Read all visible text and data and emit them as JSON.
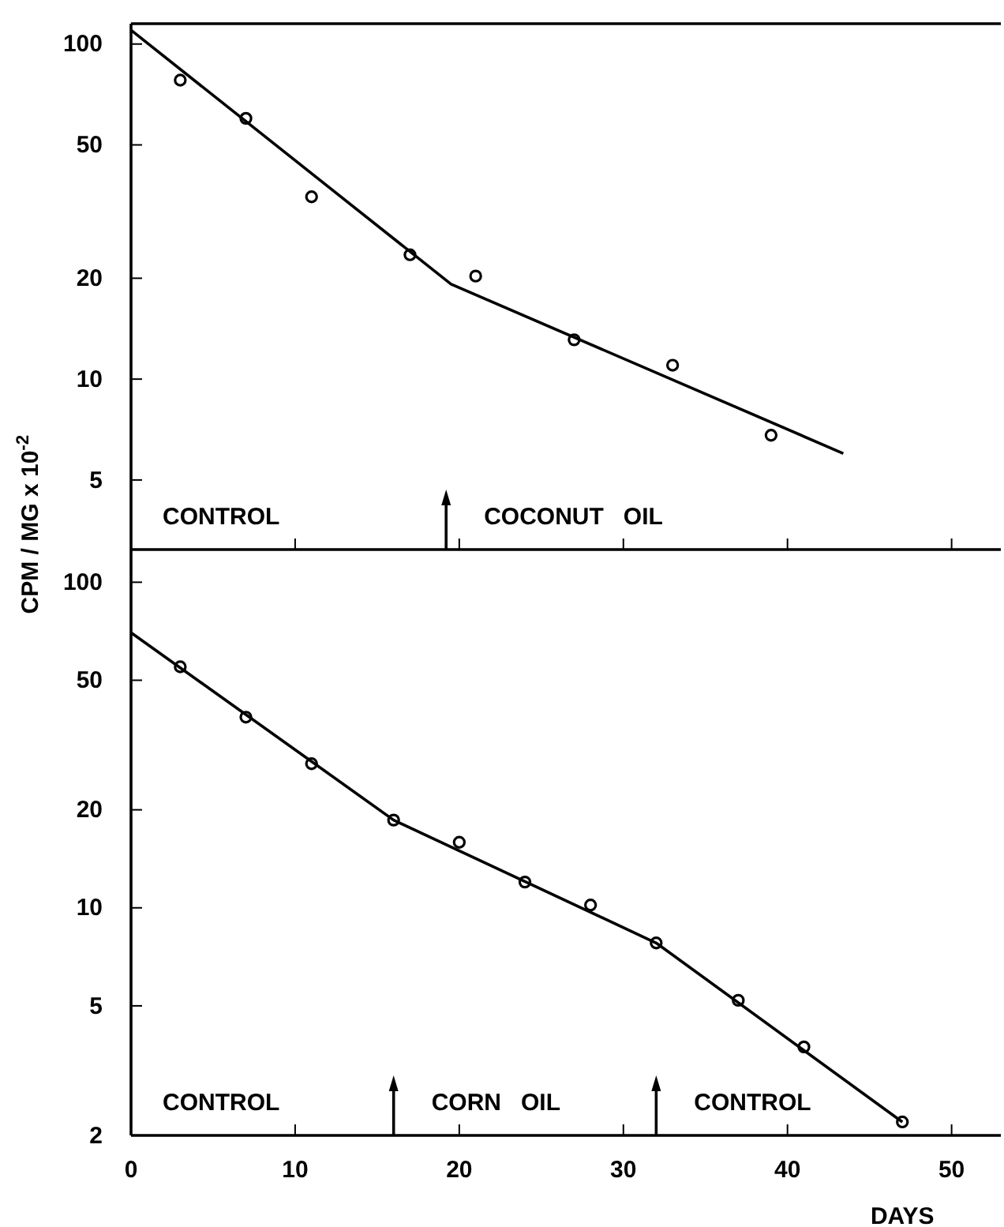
{
  "chart_data": [
    {
      "type": "scatter",
      "log": "y",
      "xlim": [
        0,
        53
      ],
      "xticks": [
        {
          "value": 0,
          "label": null
        },
        {
          "value": 10,
          "label": null
        },
        {
          "value": 20,
          "label": null
        },
        {
          "value": 30,
          "label": null
        },
        {
          "value": 40,
          "label": null
        },
        {
          "value": 50,
          "label": null
        }
      ],
      "ylim": [
        3.1,
        115
      ],
      "yticks": [
        100,
        50,
        20,
        10,
        5
      ],
      "tick_labels": "y",
      "grid": false,
      "series": [
        {
          "color": "#000000",
          "marker": "circle",
          "x": [
            3,
            7,
            11,
            17,
            21,
            27,
            33,
            39
          ],
          "values": [
            78,
            60,
            35,
            23.5,
            20.3,
            13.1,
            11,
            6.8
          ]
        },
        {
          "type": "line",
          "color": "#000000",
          "line_style": "solid",
          "x": [
            0,
            19.5,
            43.4
          ],
          "values": [
            110,
            19.2,
            6
          ]
        }
      ],
      "ref_lines": [
        {
          "axis": "x",
          "value": 19.2
        }
      ],
      "annotations": [
        "CONTROL",
        "COCONUT   OIL"
      ]
    },
    {
      "type": "scatter",
      "log": "y",
      "xlim": [
        0,
        53
      ],
      "xticks": [
        0,
        10,
        20,
        30,
        40,
        50
      ],
      "ylim": [
        2,
        126
      ],
      "yticks": [
        100,
        50,
        20,
        10,
        5,
        2
      ],
      "grid": false,
      "xlabel": "DAYS",
      "ylabel": "CPM / MG  x 10$^{-2}$",
      "series": [
        {
          "color": "#000000",
          "marker": "circle",
          "x": [
            3,
            7,
            11,
            16,
            20,
            24,
            28,
            32,
            37,
            41,
            47
          ],
          "values": [
            55,
            38.5,
            27.7,
            18.6,
            15.9,
            12,
            10.2,
            7.8,
            5.2,
            3.74,
            2.2
          ]
        },
        {
          "type": "line",
          "color": "#000000",
          "line_style": "solid",
          "x": [
            0,
            16,
            32,
            47
          ],
          "values": [
            70,
            18.6,
            7.8,
            2.2
          ]
        }
      ],
      "ref_lines": [
        {
          "axis": "x",
          "value": 16
        },
        {
          "axis": "x",
          "value": 32
        }
      ],
      "annotations": [
        "CONTROL",
        "CORN   OIL",
        "CONTROL"
      ]
    }
  ]
}
